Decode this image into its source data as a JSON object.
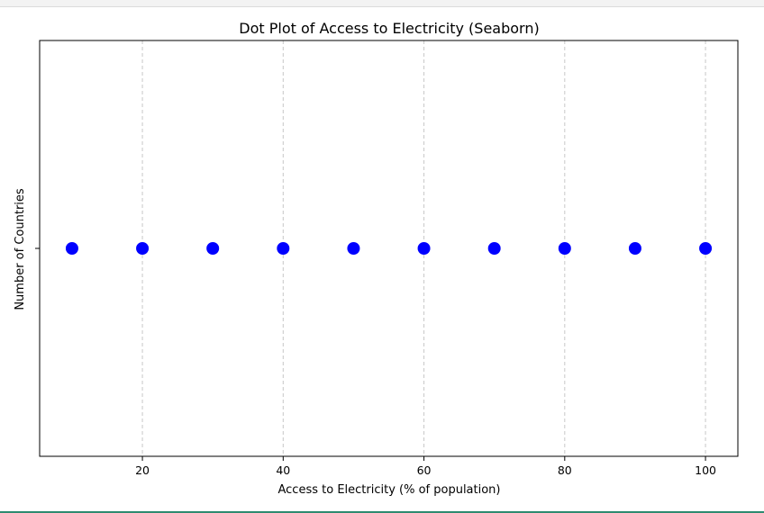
{
  "chart_data": {
    "type": "scatter",
    "title": "Dot Plot of Access to Electricity (Seaborn)",
    "xlabel": "Access to Electricity (% of population)",
    "ylabel": "Number of Countries",
    "x": [
      10,
      20,
      30,
      40,
      50,
      60,
      70,
      80,
      90,
      100
    ],
    "xlim": [
      5.4,
      104.6
    ],
    "xticks": [
      20,
      40,
      60,
      80,
      100
    ],
    "grid": "x-dashed",
    "marker_color": "#0000ff",
    "legend": "none"
  }
}
